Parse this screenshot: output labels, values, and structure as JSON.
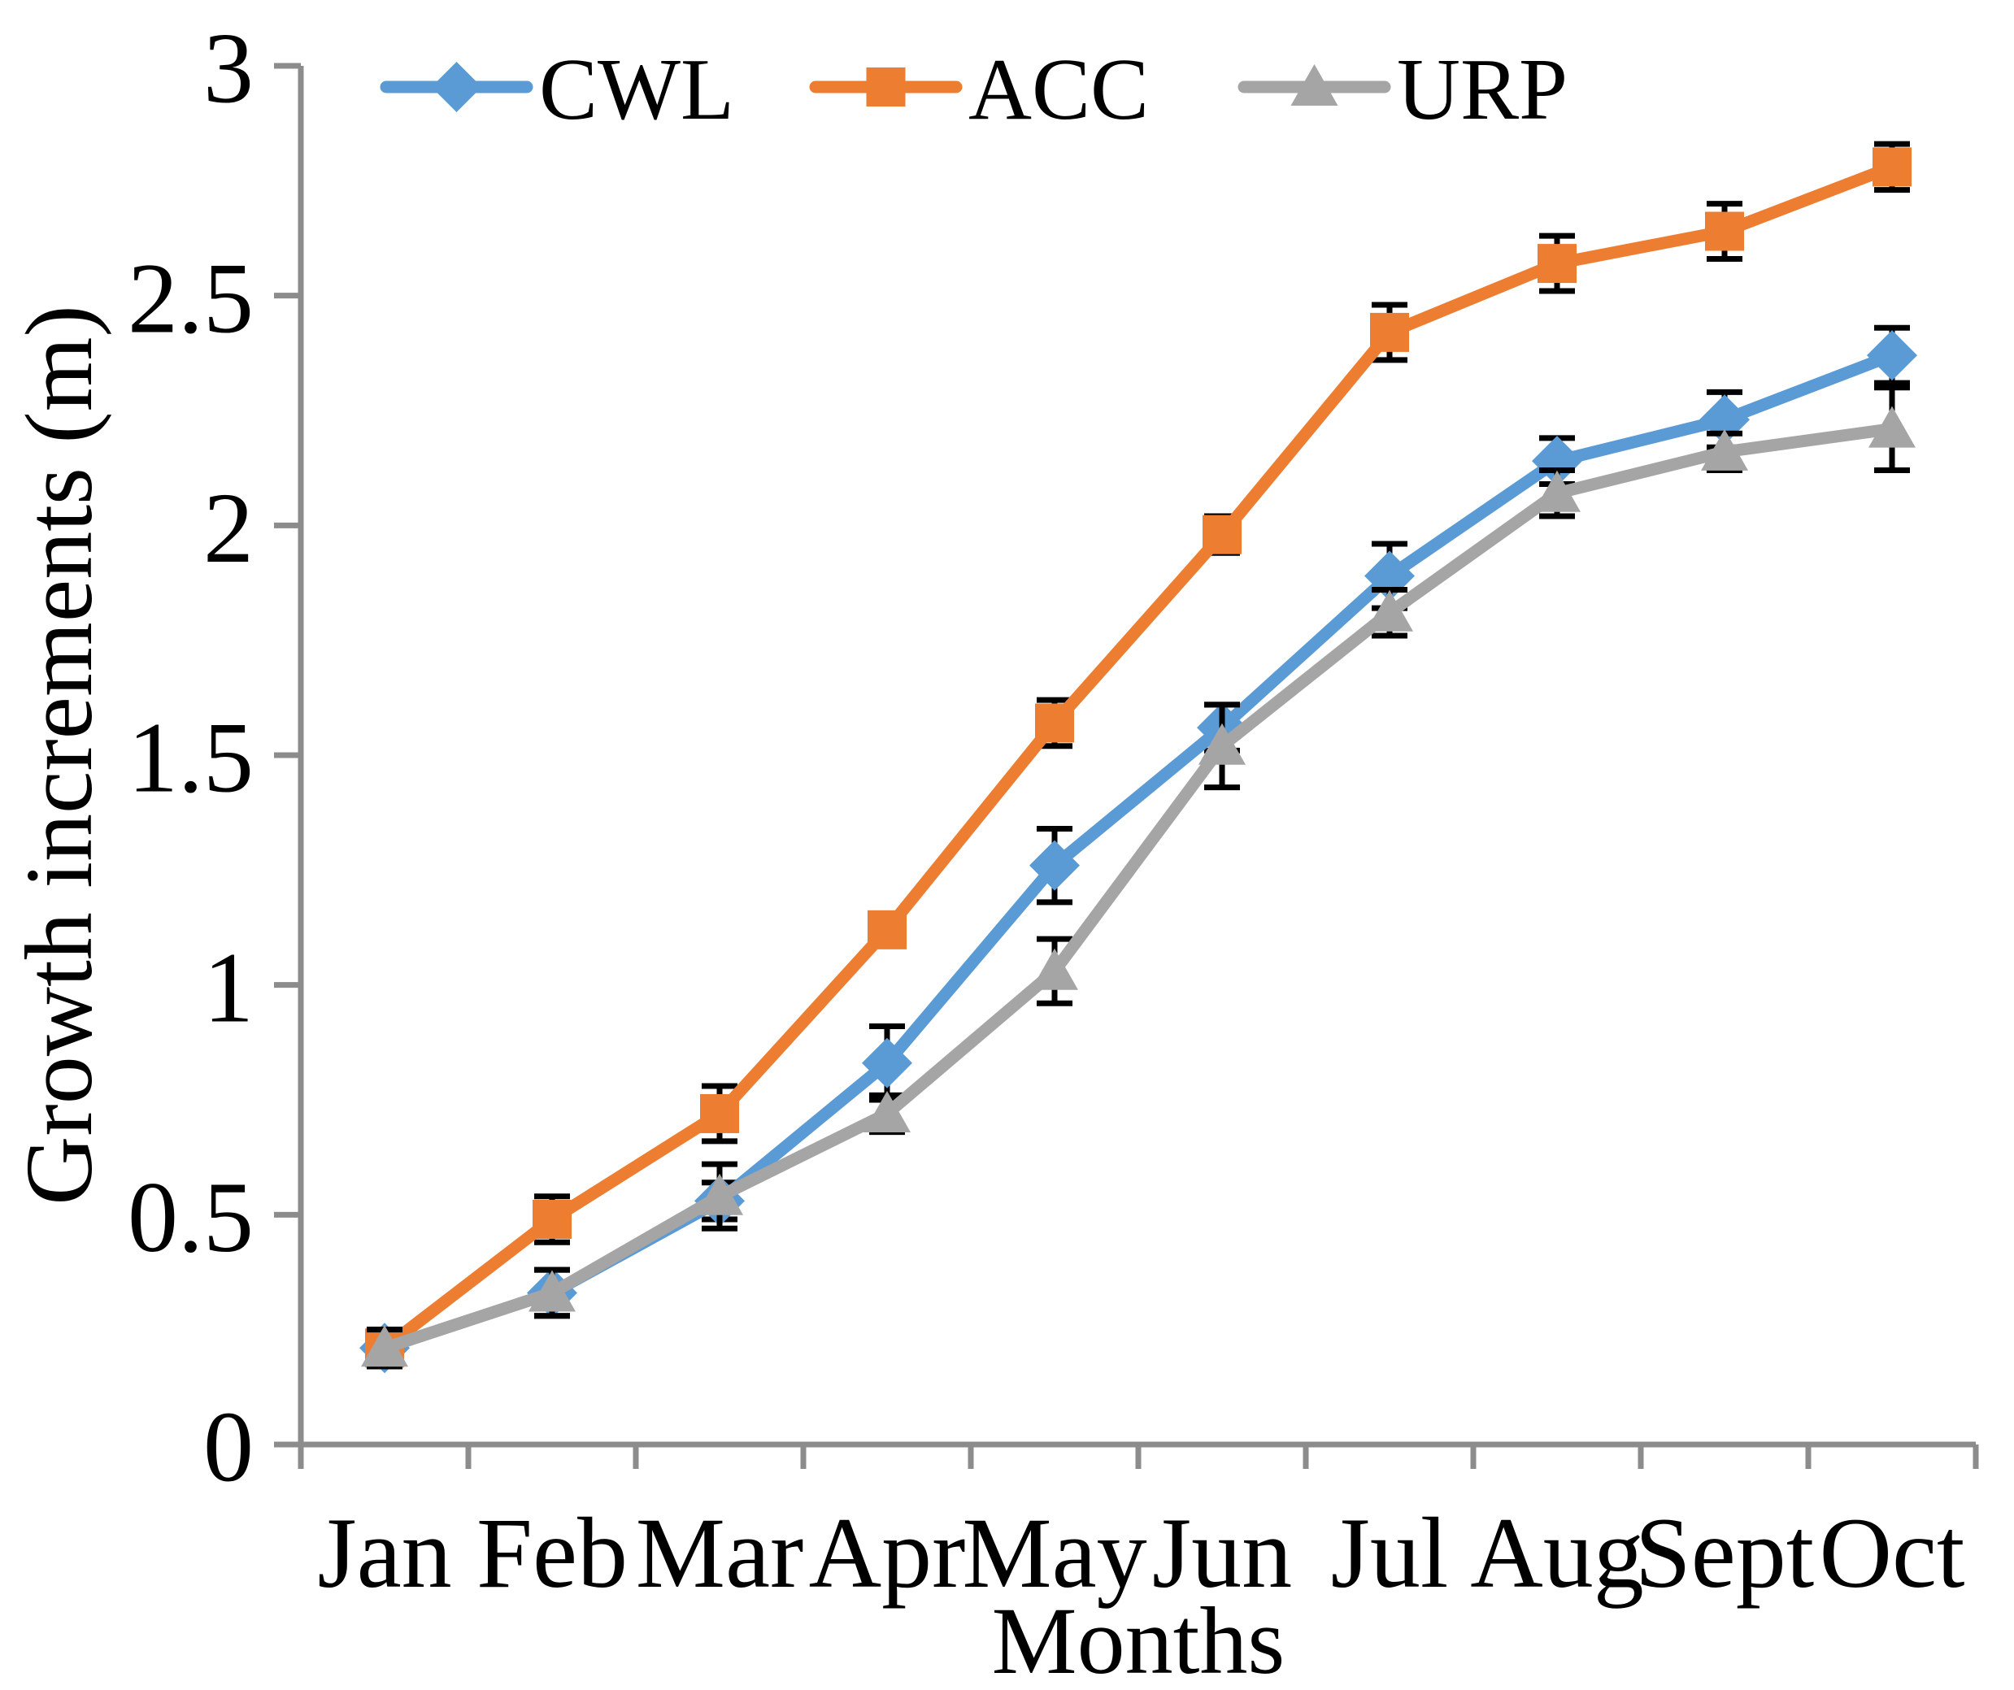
{
  "chart_data": {
    "type": "line",
    "title": "",
    "xlabel": "Months",
    "ylabel": "Growth increments (m)",
    "categories": [
      "Jan",
      "Feb",
      "Mar",
      "Apr",
      "May",
      "Jun",
      "Jul",
      "Aug",
      "Sept",
      "Oct"
    ],
    "ylim": [
      0,
      3
    ],
    "ytick_step": 0.5,
    "ytick_labels": [
      "0",
      "0.5",
      "1",
      "1.5",
      "2",
      "2.5",
      "3"
    ],
    "grid": false,
    "legend_position": "top-inside",
    "error_bars": true,
    "error_bar_color": "#000000",
    "axis_color": "#8C8C8C",
    "series": [
      {
        "name": "CWL",
        "marker": "diamond",
        "color": "#5B9BD5",
        "values": [
          0.21,
          0.33,
          0.53,
          0.83,
          1.26,
          1.56,
          1.89,
          2.14,
          2.23,
          2.37
        ],
        "errors": [
          0.04,
          0.05,
          0.04,
          0.08,
          0.08,
          0.05,
          0.07,
          0.05,
          0.06,
          0.06
        ]
      },
      {
        "name": "ACC",
        "marker": "square",
        "color": "#ED7D31",
        "values": [
          0.21,
          0.49,
          0.72,
          1.12,
          1.57,
          1.98,
          2.42,
          2.57,
          2.64,
          2.78
        ],
        "errors": [
          0.04,
          0.05,
          0.06,
          0.03,
          0.05,
          0.04,
          0.06,
          0.06,
          0.06,
          0.05
        ]
      },
      {
        "name": "URP",
        "marker": "triangle",
        "color": "#A5A5A5",
        "values": [
          0.21,
          0.33,
          0.54,
          0.72,
          1.03,
          1.52,
          1.81,
          2.07,
          2.16,
          2.21
        ],
        "errors": [
          0.04,
          0.05,
          0.07,
          0.04,
          0.07,
          0.09,
          0.05,
          0.05,
          0.04,
          0.09
        ]
      }
    ]
  }
}
